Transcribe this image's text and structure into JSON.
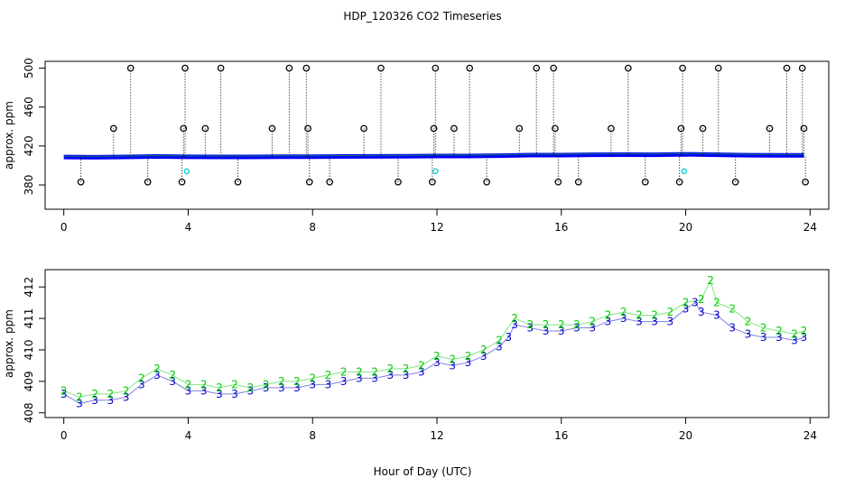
{
  "title": "HDP_120326  CO2 Timeseries",
  "xlabel": "Hour of Day (UTC)",
  "chart_data": [
    {
      "type": "scatter",
      "title": "HDP_120326  CO2 Timeseries",
      "ylabel": "approx. ppm",
      "xlim": [
        -0.6,
        24.6
      ],
      "ylim": [
        355,
        507
      ],
      "xticks": [
        0,
        4,
        8,
        12,
        16,
        20,
        24
      ],
      "yticks": [
        380,
        420,
        460,
        500
      ],
      "ytick_labels": [
        "380",
        "420",
        "460",
        "500"
      ],
      "baseline": {
        "colors": {
          "stroke": "#0000ff",
          "highlight": "#00cc00"
        },
        "x": [
          0,
          1,
          2,
          3,
          4,
          5,
          6,
          7,
          8,
          9,
          10,
          11,
          12,
          13,
          14,
          15,
          16,
          17,
          18,
          19,
          20,
          21,
          22,
          23,
          23.8
        ],
        "y": [
          408.6,
          408.4,
          408.7,
          409.2,
          408.9,
          408.7,
          408.8,
          409.0,
          409.0,
          409.2,
          409.3,
          409.4,
          409.7,
          409.7,
          410.0,
          410.6,
          410.6,
          410.9,
          411.1,
          410.9,
          411.4,
          411.0,
          410.5,
          410.4,
          410.4
        ]
      },
      "spikes": {
        "color": "#000000",
        "x": [
          0.55,
          1.6,
          2.15,
          2.7,
          3.8,
          3.85,
          3.9,
          4.55,
          5.05,
          5.6,
          6.7,
          7.25,
          7.8,
          7.85,
          7.9,
          8.55,
          9.65,
          10.2,
          10.75,
          11.85,
          11.9,
          11.95,
          12.55,
          13.05,
          13.6,
          14.65,
          15.2,
          15.75,
          15.8,
          15.9,
          16.55,
          17.6,
          18.15,
          18.7,
          19.8,
          19.85,
          19.9,
          20.55,
          21.05,
          21.6,
          22.7,
          23.25,
          23.75,
          23.8,
          23.85
        ],
        "y": [
          383,
          438,
          500,
          383,
          383,
          438,
          500,
          438,
          500,
          383,
          438,
          500,
          500,
          438,
          383,
          383,
          438,
          500,
          383,
          383,
          438,
          500,
          438,
          500,
          383,
          438,
          500,
          500,
          438,
          383,
          383,
          438,
          500,
          383,
          383,
          438,
          500,
          438,
          500,
          383,
          438,
          500,
          500,
          438,
          383
        ]
      },
      "flags": {
        "color": "#00cccc",
        "x": [
          3.95,
          11.95,
          19.95
        ],
        "y": [
          394,
          394,
          394
        ]
      }
    },
    {
      "type": "scatter",
      "ylabel": "approx. ppm",
      "xlim": [
        -0.6,
        24.6
      ],
      "ylim": [
        407.85,
        412.55
      ],
      "xticks": [
        0,
        4,
        8,
        12,
        16,
        20,
        24
      ],
      "yticks": [
        408,
        409,
        410,
        411,
        412
      ],
      "ytick_labels": [
        "408",
        "409",
        "410",
        "411",
        "412"
      ],
      "series": [
        {
          "marker": "3",
          "color": "#0000cc",
          "x": [
            0,
            0.5,
            1,
            1.5,
            2,
            2.5,
            3,
            3.5,
            4,
            4.5,
            5,
            5.5,
            6,
            6.5,
            7,
            7.5,
            8,
            8.5,
            9,
            9.5,
            10,
            10.5,
            11,
            11.5,
            12,
            12.5,
            13,
            13.5,
            14,
            14.3,
            14.5,
            15,
            15.5,
            16,
            16.5,
            17,
            17.5,
            18,
            18.5,
            19,
            19.5,
            20,
            20.3,
            20.5,
            21,
            21.5,
            22,
            22.5,
            23,
            23.5,
            23.8
          ],
          "y": [
            408.6,
            408.3,
            408.4,
            408.4,
            408.5,
            408.9,
            409.2,
            409.0,
            408.7,
            408.7,
            408.6,
            408.6,
            408.7,
            408.8,
            408.8,
            408.8,
            408.9,
            408.9,
            409.0,
            409.1,
            409.1,
            409.2,
            409.2,
            409.3,
            409.6,
            409.5,
            409.6,
            409.8,
            410.1,
            410.4,
            410.8,
            410.7,
            410.6,
            410.6,
            410.7,
            410.7,
            410.9,
            411.0,
            410.9,
            410.9,
            410.9,
            411.3,
            411.5,
            411.2,
            411.1,
            410.7,
            410.5,
            410.4,
            410.4,
            410.3,
            410.4
          ]
        },
        {
          "marker": "2",
          "color": "#00cc00",
          "x": [
            0,
            0.5,
            1,
            1.5,
            2,
            2.5,
            3,
            3.5,
            4,
            4.5,
            5,
            5.5,
            6,
            6.5,
            7,
            7.5,
            8,
            8.5,
            9,
            9.5,
            10,
            10.5,
            11,
            11.5,
            12,
            12.5,
            13,
            13.5,
            14,
            14.5,
            15,
            15.5,
            16,
            16.5,
            17,
            17.5,
            18,
            18.5,
            19,
            19.5,
            20,
            20.5,
            20.8,
            21,
            21.5,
            22,
            22.5,
            23,
            23.5,
            23.8
          ],
          "y": [
            408.7,
            408.5,
            408.6,
            408.6,
            408.7,
            409.1,
            409.4,
            409.2,
            408.9,
            408.9,
            408.8,
            408.9,
            408.8,
            408.9,
            409.0,
            409.0,
            409.1,
            409.2,
            409.3,
            409.3,
            409.3,
            409.4,
            409.4,
            409.5,
            409.8,
            409.7,
            409.8,
            410.0,
            410.3,
            411.0,
            410.8,
            410.8,
            410.8,
            410.8,
            410.9,
            411.1,
            411.2,
            411.1,
            411.1,
            411.2,
            411.5,
            411.6,
            412.2,
            411.5,
            411.3,
            410.9,
            410.7,
            410.6,
            410.5,
            410.6
          ]
        }
      ]
    }
  ]
}
